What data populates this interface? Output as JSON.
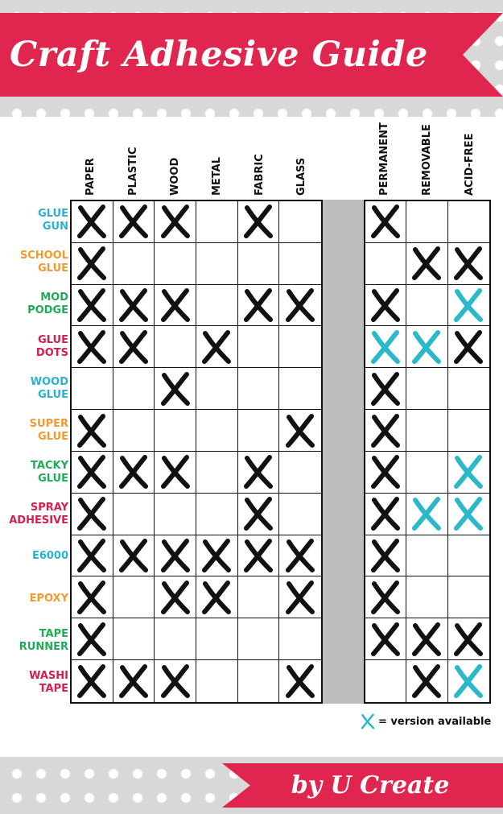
{
  "title": "Craft Adhesive Guide",
  "credit": "by U Create",
  "columns": [
    "PAPER",
    "PLASTIC",
    "WOOD",
    "METAL",
    "FABRIC",
    "GLASS",
    "PERMANENT",
    "REMOVABLE",
    "ACID-FREE"
  ],
  "colors": {
    "banner": "#e0264f",
    "mark_standard": "#111111",
    "mark_version": "#2bb8c9",
    "cyan": "#29b3cf",
    "orange": "#f29a2e",
    "green": "#1fab58",
    "red": "#d3204c"
  },
  "rows": [
    {
      "label": [
        "GLUE",
        "GUN"
      ],
      "color": "#29b3cf",
      "cells": [
        "X",
        "X",
        "X",
        "",
        "X",
        "",
        "X",
        "",
        ""
      ]
    },
    {
      "label": [
        "SCHOOL",
        "GLUE"
      ],
      "color": "#f29a2e",
      "cells": [
        "X",
        "",
        "",
        "",
        "",
        "",
        "",
        "X",
        "X"
      ]
    },
    {
      "label": [
        "MOD",
        "PODGE"
      ],
      "color": "#1fab58",
      "cells": [
        "X",
        "X",
        "X",
        "",
        "X",
        "X",
        "X",
        "",
        "V"
      ]
    },
    {
      "label": [
        "GLUE",
        "DOTS"
      ],
      "color": "#d3204c",
      "cells": [
        "X",
        "X",
        "",
        "X",
        "",
        "",
        "V",
        "V",
        "X"
      ]
    },
    {
      "label": [
        "WOOD",
        "GLUE"
      ],
      "color": "#29b3cf",
      "cells": [
        "",
        "",
        "X",
        "",
        "",
        "",
        "X",
        "",
        ""
      ]
    },
    {
      "label": [
        "SUPER",
        "GLUE"
      ],
      "color": "#f29a2e",
      "cells": [
        "X",
        "",
        "",
        "",
        "",
        "X",
        "X",
        "",
        ""
      ]
    },
    {
      "label": [
        "TACKY",
        "GLUE"
      ],
      "color": "#1fab58",
      "cells": [
        "X",
        "X",
        "X",
        "",
        "X",
        "",
        "X",
        "",
        "V"
      ]
    },
    {
      "label": [
        "SPRAY",
        "ADHESIVE"
      ],
      "color": "#d3204c",
      "cells": [
        "X",
        "",
        "",
        "",
        "X",
        "",
        "X",
        "V",
        "V"
      ]
    },
    {
      "label": [
        "E6000"
      ],
      "color": "#29b3cf",
      "cells": [
        "X",
        "X",
        "X",
        "X",
        "X",
        "X",
        "X",
        "",
        ""
      ]
    },
    {
      "label": [
        "EPOXY"
      ],
      "color": "#f29a2e",
      "cells": [
        "X",
        "",
        "X",
        "X",
        "",
        "X",
        "X",
        "",
        ""
      ]
    },
    {
      "label": [
        "TAPE",
        "RUNNER"
      ],
      "color": "#1fab58",
      "cells": [
        "X",
        "",
        "",
        "",
        "",
        "",
        "X",
        "X",
        "X"
      ]
    },
    {
      "label": [
        "WASHI",
        "TAPE"
      ],
      "color": "#d3204c",
      "cells": [
        "X",
        "X",
        "X",
        "",
        "",
        "X",
        "",
        "X",
        "V"
      ]
    }
  ],
  "legend": {
    "symbol": "X",
    "text": "= version available"
  }
}
